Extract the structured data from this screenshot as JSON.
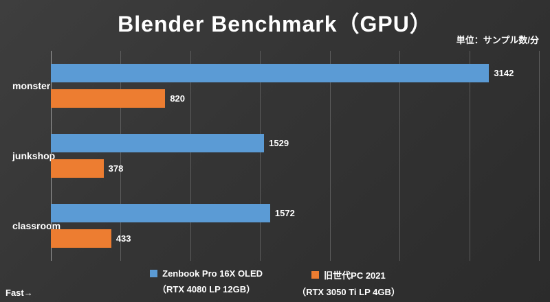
{
  "title": "Blender Benchmark（GPU）",
  "unit_label": "単位：サンプル数/分",
  "fast_label": "Fast→",
  "colors": {
    "background": "#333333",
    "gridline": "#5c5c5c",
    "axis": "#9d9d9d",
    "text": "#ffffff",
    "series1": "#5B9BD5",
    "series2": "#ED7D31"
  },
  "chart_data": {
    "type": "bar",
    "orientation": "horizontal",
    "title": "Blender Benchmark（GPU）",
    "categories": [
      "monster",
      "junkshop",
      "classroom"
    ],
    "series": [
      {
        "name": "Zenbook Pro 16X OLED",
        "subname": "（RTX 4080 LP 12GB）",
        "color": "#5B9BD5",
        "values": [
          3142,
          1529,
          1572
        ]
      },
      {
        "name": "旧世代PC 2021",
        "subname": "（RTX 3050 Ti LP 4GB）",
        "color": "#ED7D31",
        "values": [
          820,
          378,
          433
        ]
      }
    ],
    "xlim": [
      0,
      3500
    ],
    "gridline_interval": 500,
    "grid": true,
    "legend_position": "bottom",
    "value_labels": true
  },
  "legend": {
    "items": [
      {
        "label": "Zenbook Pro 16X OLED",
        "sublabel": "（RTX 4080 LP 12GB）",
        "color": "#5B9BD5"
      },
      {
        "label": "旧世代PC 2021",
        "sublabel": "（RTX 3050 Ti LP 4GB）",
        "color": "#ED7D31"
      }
    ]
  }
}
